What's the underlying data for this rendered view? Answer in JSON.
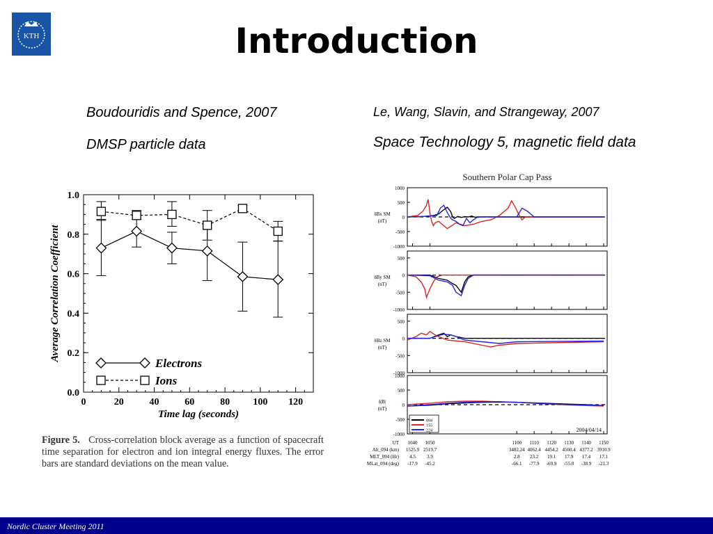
{
  "header": {
    "title": "Introduction",
    "logo_text": "KTH",
    "logo_color": "#1954a6"
  },
  "left_ref": {
    "authors": "Boudouridis and Spence, 2007",
    "subtitle": "DMSP particle data"
  },
  "right_ref": {
    "authors": "Le, Wang, Slavin, and Strangeway, 2007",
    "subtitle": "Space Technology 5, magnetic field data"
  },
  "footer": {
    "text": "Nordic Cluster Meeting 2011",
    "color": "#00008b"
  },
  "figure5": {
    "caption_label": "Figure 5.",
    "caption_text": "Cross-correlation block average as a function of spacecraft time separation for electron and ion integral energy fluxes. The error bars are standard deviations on the mean value."
  },
  "chart_data": [
    {
      "type": "line",
      "xlabel": "Time lag (seconds)",
      "ylabel": "Average Correlation Coefficient",
      "xlim": [
        0,
        130
      ],
      "ylim": [
        0,
        1.0
      ],
      "x_ticks": [
        "0",
        "20",
        "40",
        "60",
        "80",
        "100",
        "120"
      ],
      "y_ticks": [
        "0.0",
        "0.2",
        "0.4",
        "0.6",
        "0.8",
        "1.0"
      ],
      "grid": false,
      "legend_position": "bottom-left",
      "x": [
        10,
        30,
        50,
        70,
        90,
        110
      ],
      "series": [
        {
          "name": "Electrons",
          "marker": "diamond",
          "line": "solid",
          "values": [
            0.73,
            0.815,
            0.73,
            0.715,
            0.585,
            0.57
          ],
          "err_low": [
            0.59,
            0.735,
            0.65,
            0.565,
            0.41,
            0.38
          ],
          "err_high": [
            0.875,
            0.895,
            0.81,
            0.865,
            0.76,
            0.765
          ]
        },
        {
          "name": "Ions",
          "marker": "square",
          "line": "dashed",
          "values": [
            0.915,
            0.895,
            0.9,
            0.845,
            0.93,
            0.815
          ],
          "err_low": [
            0.87,
            0.875,
            0.84,
            0.77,
            0.91,
            0.765
          ],
          "err_high": [
            0.965,
            0.92,
            0.965,
            0.92,
            0.945,
            0.865
          ]
        }
      ]
    },
    {
      "type": "line",
      "title": "Southern Polar Cap Pass",
      "date_label": "2004/04/14",
      "x_ticks": [
        "1040",
        "1050",
        "1100",
        "1110",
        "1120",
        "1130",
        "1140",
        "1150"
      ],
      "table_rows": [
        {
          "label": "UT",
          "values": [
            "1040",
            "1050",
            "1100",
            "1110",
            "1120",
            "1130",
            "1140",
            "1150"
          ]
        },
        {
          "label": "Alt_094 (km)",
          "values": [
            "1525.9",
            "2519.7",
            "3402.24",
            "4062.4",
            "4454.2",
            "4560.4",
            "4377.2",
            "3910.9"
          ]
        },
        {
          "label": "MLT_094 (Hr)",
          "values": [
            "4.5",
            "3.9",
            "2.8",
            "23.2",
            "19.1",
            "17.9",
            "17.4",
            "17.1"
          ]
        },
        {
          "label": "MLat_094 (deg)",
          "values": [
            "-17.9",
            "-45.2",
            "-66.1",
            "-77.9",
            "-69.9",
            "-55.0",
            "-38.9",
            "-21.3"
          ]
        }
      ],
      "legend": [
        {
          "name": "094",
          "color": "#000000"
        },
        {
          "name": "155",
          "color": "#dd2222"
        },
        {
          "name": "224",
          "color": "#2222ee"
        }
      ],
      "panels": [
        {
          "ylabel": "δBx SM",
          "unit": "(nT)",
          "ylim": [
            -1000,
            1000
          ],
          "yticks": [
            "1000",
            "500",
            "0",
            "-500",
            "-1000"
          ],
          "series": [
            {
              "name": "094",
              "x": [
                1037,
                1045,
                1052,
                1055,
                1058,
                1060,
                1062,
                1063,
                1064,
                1066,
                1068,
                1070,
                1072,
                1074,
                1076,
                1078,
                1080,
                1084,
                1090,
                1100,
                1110,
                1120,
                1130,
                1140,
                1150
              ],
              "y": [
                0,
                10,
                50,
                100,
                250,
                330,
                180,
                0,
                -50,
                20,
                -20,
                10,
                0,
                30,
                -10,
                0,
                0,
                5,
                0,
                0,
                0,
                0,
                0,
                0,
                0
              ]
            },
            {
              "name": "155",
              "x": [
                1037,
                1043,
                1046,
                1048,
                1049,
                1050,
                1051,
                1052,
                1053,
                1055,
                1060,
                1065,
                1070,
                1075,
                1080,
                1085,
                1090,
                1095,
                1097,
                1099,
                1101,
                1103,
                1105,
                1110,
                1150
              ],
              "y": [
                0,
                50,
                200,
                400,
                600,
                150,
                -150,
                -300,
                -200,
                -150,
                -400,
                -200,
                -300,
                -250,
                -150,
                -100,
                50,
                300,
                550,
                350,
                100,
                -100,
                0,
                0,
                0
              ]
            },
            {
              "name": "224",
              "x": [
                1037,
                1047,
                1054,
                1056,
                1058,
                1060,
                1062,
                1063,
                1065,
                1067,
                1069,
                1071,
                1073,
                1075,
                1077,
                1079,
                1090,
                1100,
                1103,
                1106,
                1110,
                1150
              ],
              "y": [
                0,
                20,
                50,
                300,
                400,
                150,
                -50,
                -100,
                -150,
                -250,
                -300,
                -50,
                -200,
                -100,
                -20,
                0,
                0,
                0,
                300,
                200,
                0,
                0
              ]
            }
          ]
        },
        {
          "ylabel": "δBy SM",
          "unit": "(nT)",
          "ylim": [
            -1000,
            700
          ],
          "yticks": [
            "500",
            "0",
            "-500",
            "-1000"
          ],
          "series": [
            {
              "name": "094",
              "x": [
                1037,
                1050,
                1055,
                1060,
                1063,
                1065,
                1068,
                1070,
                1072,
                1075,
                1080,
                1090,
                1150
              ],
              "y": [
                0,
                0,
                -100,
                -150,
                -250,
                -300,
                -500,
                -200,
                -50,
                0,
                0,
                0,
                0
              ]
            },
            {
              "name": "155",
              "x": [
                1037,
                1042,
                1045,
                1047,
                1048,
                1050,
                1052,
                1054,
                1057,
                1060,
                1070,
                1090,
                1150
              ],
              "y": [
                0,
                -50,
                -200,
                -400,
                -650,
                -400,
                -200,
                -50,
                0,
                0,
                0,
                0,
                0
              ]
            },
            {
              "name": "224",
              "x": [
                1037,
                1050,
                1055,
                1060,
                1063,
                1065,
                1068,
                1070,
                1072,
                1075,
                1080,
                1090,
                1150
              ],
              "y": [
                0,
                -20,
                -150,
                -200,
                -300,
                -500,
                -600,
                -300,
                -100,
                0,
                0,
                0,
                0
              ]
            }
          ]
        },
        {
          "ylabel": "δBz SM",
          "unit": "(nT)",
          "ylim": [
            -1000,
            700
          ],
          "yticks": [
            "500",
            "0",
            "-500",
            "-1000"
          ],
          "series": [
            {
              "name": "094",
              "x": [
                1037,
                1050,
                1055,
                1058,
                1060,
                1062,
                1065,
                1070,
                1080,
                1090,
                1150
              ],
              "y": [
                0,
                0,
                100,
                150,
                50,
                100,
                50,
                0,
                0,
                0,
                0
              ]
            },
            {
              "name": "155",
              "x": [
                1037,
                1042,
                1045,
                1048,
                1050,
                1053,
                1055,
                1060,
                1070,
                1080,
                1085,
                1090,
                1100,
                1150
              ],
              "y": [
                -50,
                50,
                150,
                100,
                200,
                100,
                50,
                -50,
                -100,
                -200,
                -250,
                -200,
                -150,
                -100
              ]
            },
            {
              "name": "224",
              "x": [
                1037,
                1050,
                1055,
                1058,
                1062,
                1065,
                1070,
                1080,
                1090,
                1100,
                1150
              ],
              "y": [
                0,
                0,
                80,
                120,
                100,
                50,
                -50,
                -100,
                -150,
                -100,
                -80
              ]
            }
          ]
        },
        {
          "ylabel": "δ|B|",
          "unit": "(nT)",
          "ylim": [
            -1000,
            1000
          ],
          "yticks": [
            "1000",
            "500",
            "0",
            "-500",
            "-1000"
          ],
          "series": [
            {
              "name": "094",
              "x": [
                1037,
                1050,
                1060,
                1070,
                1080,
                1090,
                1100,
                1110,
                1120,
                1130,
                1140,
                1150
              ],
              "y": [
                -50,
                -20,
                30,
                60,
                80,
                90,
                80,
                60,
                40,
                20,
                0,
                -30
              ]
            },
            {
              "name": "155",
              "x": [
                1037,
                1050,
                1060,
                1070,
                1080,
                1090,
                1100,
                1110,
                1120,
                1130,
                1140,
                1150
              ],
              "y": [
                0,
                50,
                100,
                120,
                120,
                100,
                80,
                50,
                20,
                -10,
                -30,
                -50
              ]
            },
            {
              "name": "224",
              "x": [
                1037,
                1050,
                1060,
                1070,
                1080,
                1090,
                1100,
                1110,
                1120,
                1130,
                1140,
                1150
              ],
              "y": [
                -50,
                0,
                50,
                80,
                100,
                100,
                80,
                50,
                20,
                0,
                -10,
                -30
              ]
            }
          ]
        }
      ]
    }
  ]
}
